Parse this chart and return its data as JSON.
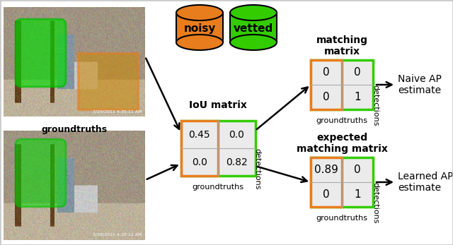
{
  "bg_color": "#ffffff",
  "orange_color": "#E87D1E",
  "green_color": "#33CC00",
  "light_gray": "#ebebeb",
  "noisy_label": "noisy",
  "vetted_label": "vetted",
  "iou_title": "IoU matrix",
  "iou_values": [
    [
      "0.45",
      "0.0"
    ],
    [
      "0.0",
      "0.82"
    ]
  ],
  "iou_label_x": "groundtruths",
  "iou_label_y": "detections",
  "matching_title": "matching\nmatrix",
  "matching_values": [
    [
      "0",
      "0"
    ],
    [
      "0",
      "1"
    ]
  ],
  "matching_label_x": "groundtruths",
  "matching_label_y": "detections",
  "expected_title": "expected\nmatching matrix",
  "expected_values": [
    [
      "0.89",
      "0"
    ],
    [
      "0",
      "1"
    ]
  ],
  "expected_label_x": "groundtruths",
  "expected_label_y": "detections",
  "naive_ap_label": "Naive AP\nestimate",
  "learned_ap_label": "Learned AP\nestimate",
  "gt_label": "groundtruths",
  "det_label": "detections",
  "fig_w": 6.4,
  "fig_h": 3.47,
  "dpi": 100
}
